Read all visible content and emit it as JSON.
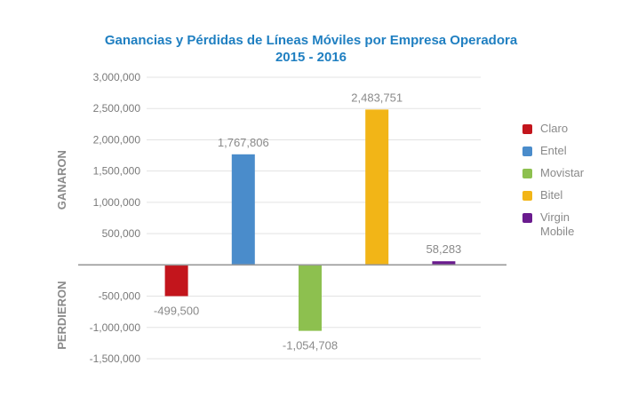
{
  "chart_data": {
    "type": "bar",
    "title": "Ganancias y Pérdidas de Líneas Móviles por Empresa Operadora",
    "subtitle": "2015 - 2016",
    "categories": [
      "Claro",
      "Entel",
      "Movistar",
      "Bitel",
      "Virgin Mobile"
    ],
    "values": [
      -499500,
      1767806,
      -1054708,
      2483751,
      58283
    ],
    "data_labels": [
      "-499,500",
      "1,767,806",
      "-1,054,708",
      "2,483,751",
      "58,283"
    ],
    "colors": [
      "#c3151c",
      "#4a8ccb",
      "#8dc04f",
      "#f2b517",
      "#6a1b8e"
    ],
    "ylim": [
      -1500000,
      3000000
    ],
    "yticks": [
      3000000,
      2500000,
      2000000,
      1500000,
      1000000,
      500000,
      -500000,
      -1000000,
      -1500000
    ],
    "ytick_labels": [
      "3,000,000",
      "2,500,000",
      "2,000,000",
      "1,500,000",
      "1,000,000",
      "500,000",
      "-500,000",
      "-1,000,000",
      "-1,500,000"
    ],
    "ylabel_positive": "GANARON",
    "ylabel_negative": "PERDIERON",
    "grid": true,
    "legend_position": "right"
  }
}
